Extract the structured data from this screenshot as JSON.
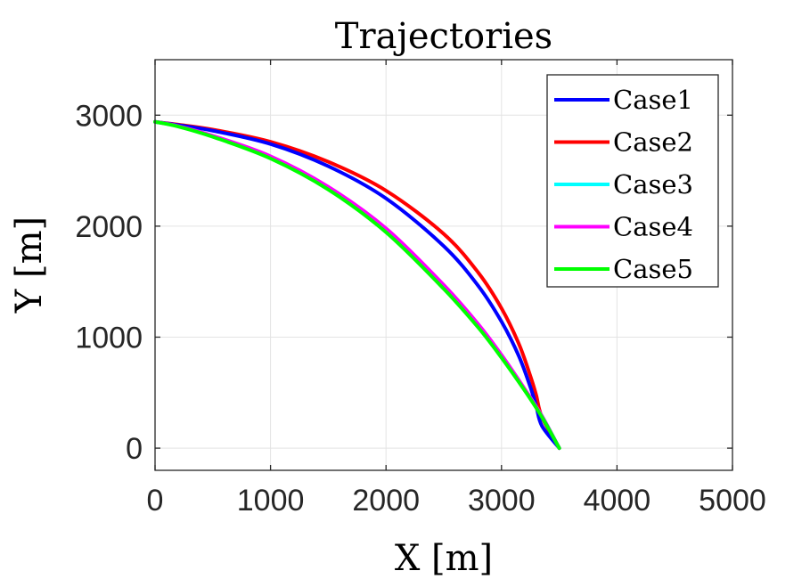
{
  "chart_data": {
    "type": "line",
    "title": "Trajectories",
    "xlabel": "X [m]",
    "ylabel": "Y [m]",
    "xlim": [
      0,
      5000
    ],
    "ylim": [
      -200,
      3500
    ],
    "xticks": [
      0,
      1000,
      2000,
      3000,
      4000,
      5000
    ],
    "yticks": [
      0,
      1000,
      2000,
      3000
    ],
    "xtick_labels": [
      "0",
      "1000",
      "2000",
      "3000",
      "4000",
      "5000"
    ],
    "ytick_labels": [
      "0",
      "1000",
      "2000",
      "3000"
    ],
    "grid": true,
    "legend_position": "top-right",
    "series": [
      {
        "name": "Case1",
        "color": "#0000ff",
        "x": [
          0,
          200,
          500,
          1000,
          1500,
          2000,
          2500,
          2800,
          3000,
          3150,
          3250,
          3300,
          3350,
          3500
        ],
        "y": [
          2940,
          2910,
          2860,
          2740,
          2540,
          2250,
          1820,
          1460,
          1140,
          830,
          550,
          380,
          200,
          0
        ]
      },
      {
        "name": "Case2",
        "color": "#ff0000",
        "x": [
          0,
          200,
          500,
          1000,
          1500,
          2000,
          2500,
          2800,
          3000,
          3150,
          3250,
          3300,
          3350,
          3500
        ],
        "y": [
          2940,
          2915,
          2870,
          2760,
          2580,
          2320,
          1930,
          1580,
          1260,
          940,
          650,
          480,
          280,
          0
        ]
      },
      {
        "name": "Case3",
        "color": "#00ffff",
        "x": [
          0,
          200,
          500,
          1000,
          1500,
          2000,
          2500,
          2800,
          3000,
          3200,
          3350,
          3500
        ],
        "y": [
          2940,
          2900,
          2810,
          2620,
          2340,
          1960,
          1450,
          1100,
          830,
          530,
          290,
          0
        ]
      },
      {
        "name": "Case4",
        "color": "#ff00ff",
        "x": [
          0,
          200,
          500,
          1000,
          1500,
          2000,
          2500,
          2800,
          3000,
          3200,
          3350,
          3500
        ],
        "y": [
          2940,
          2902,
          2815,
          2630,
          2355,
          1980,
          1470,
          1115,
          840,
          535,
          290,
          0
        ]
      },
      {
        "name": "Case5",
        "color": "#00ff00",
        "x": [
          0,
          200,
          500,
          1000,
          1500,
          2000,
          2500,
          2800,
          3000,
          3200,
          3350,
          3500
        ],
        "y": [
          2940,
          2898,
          2805,
          2610,
          2330,
          1945,
          1435,
          1085,
          815,
          520,
          280,
          0
        ]
      }
    ]
  }
}
